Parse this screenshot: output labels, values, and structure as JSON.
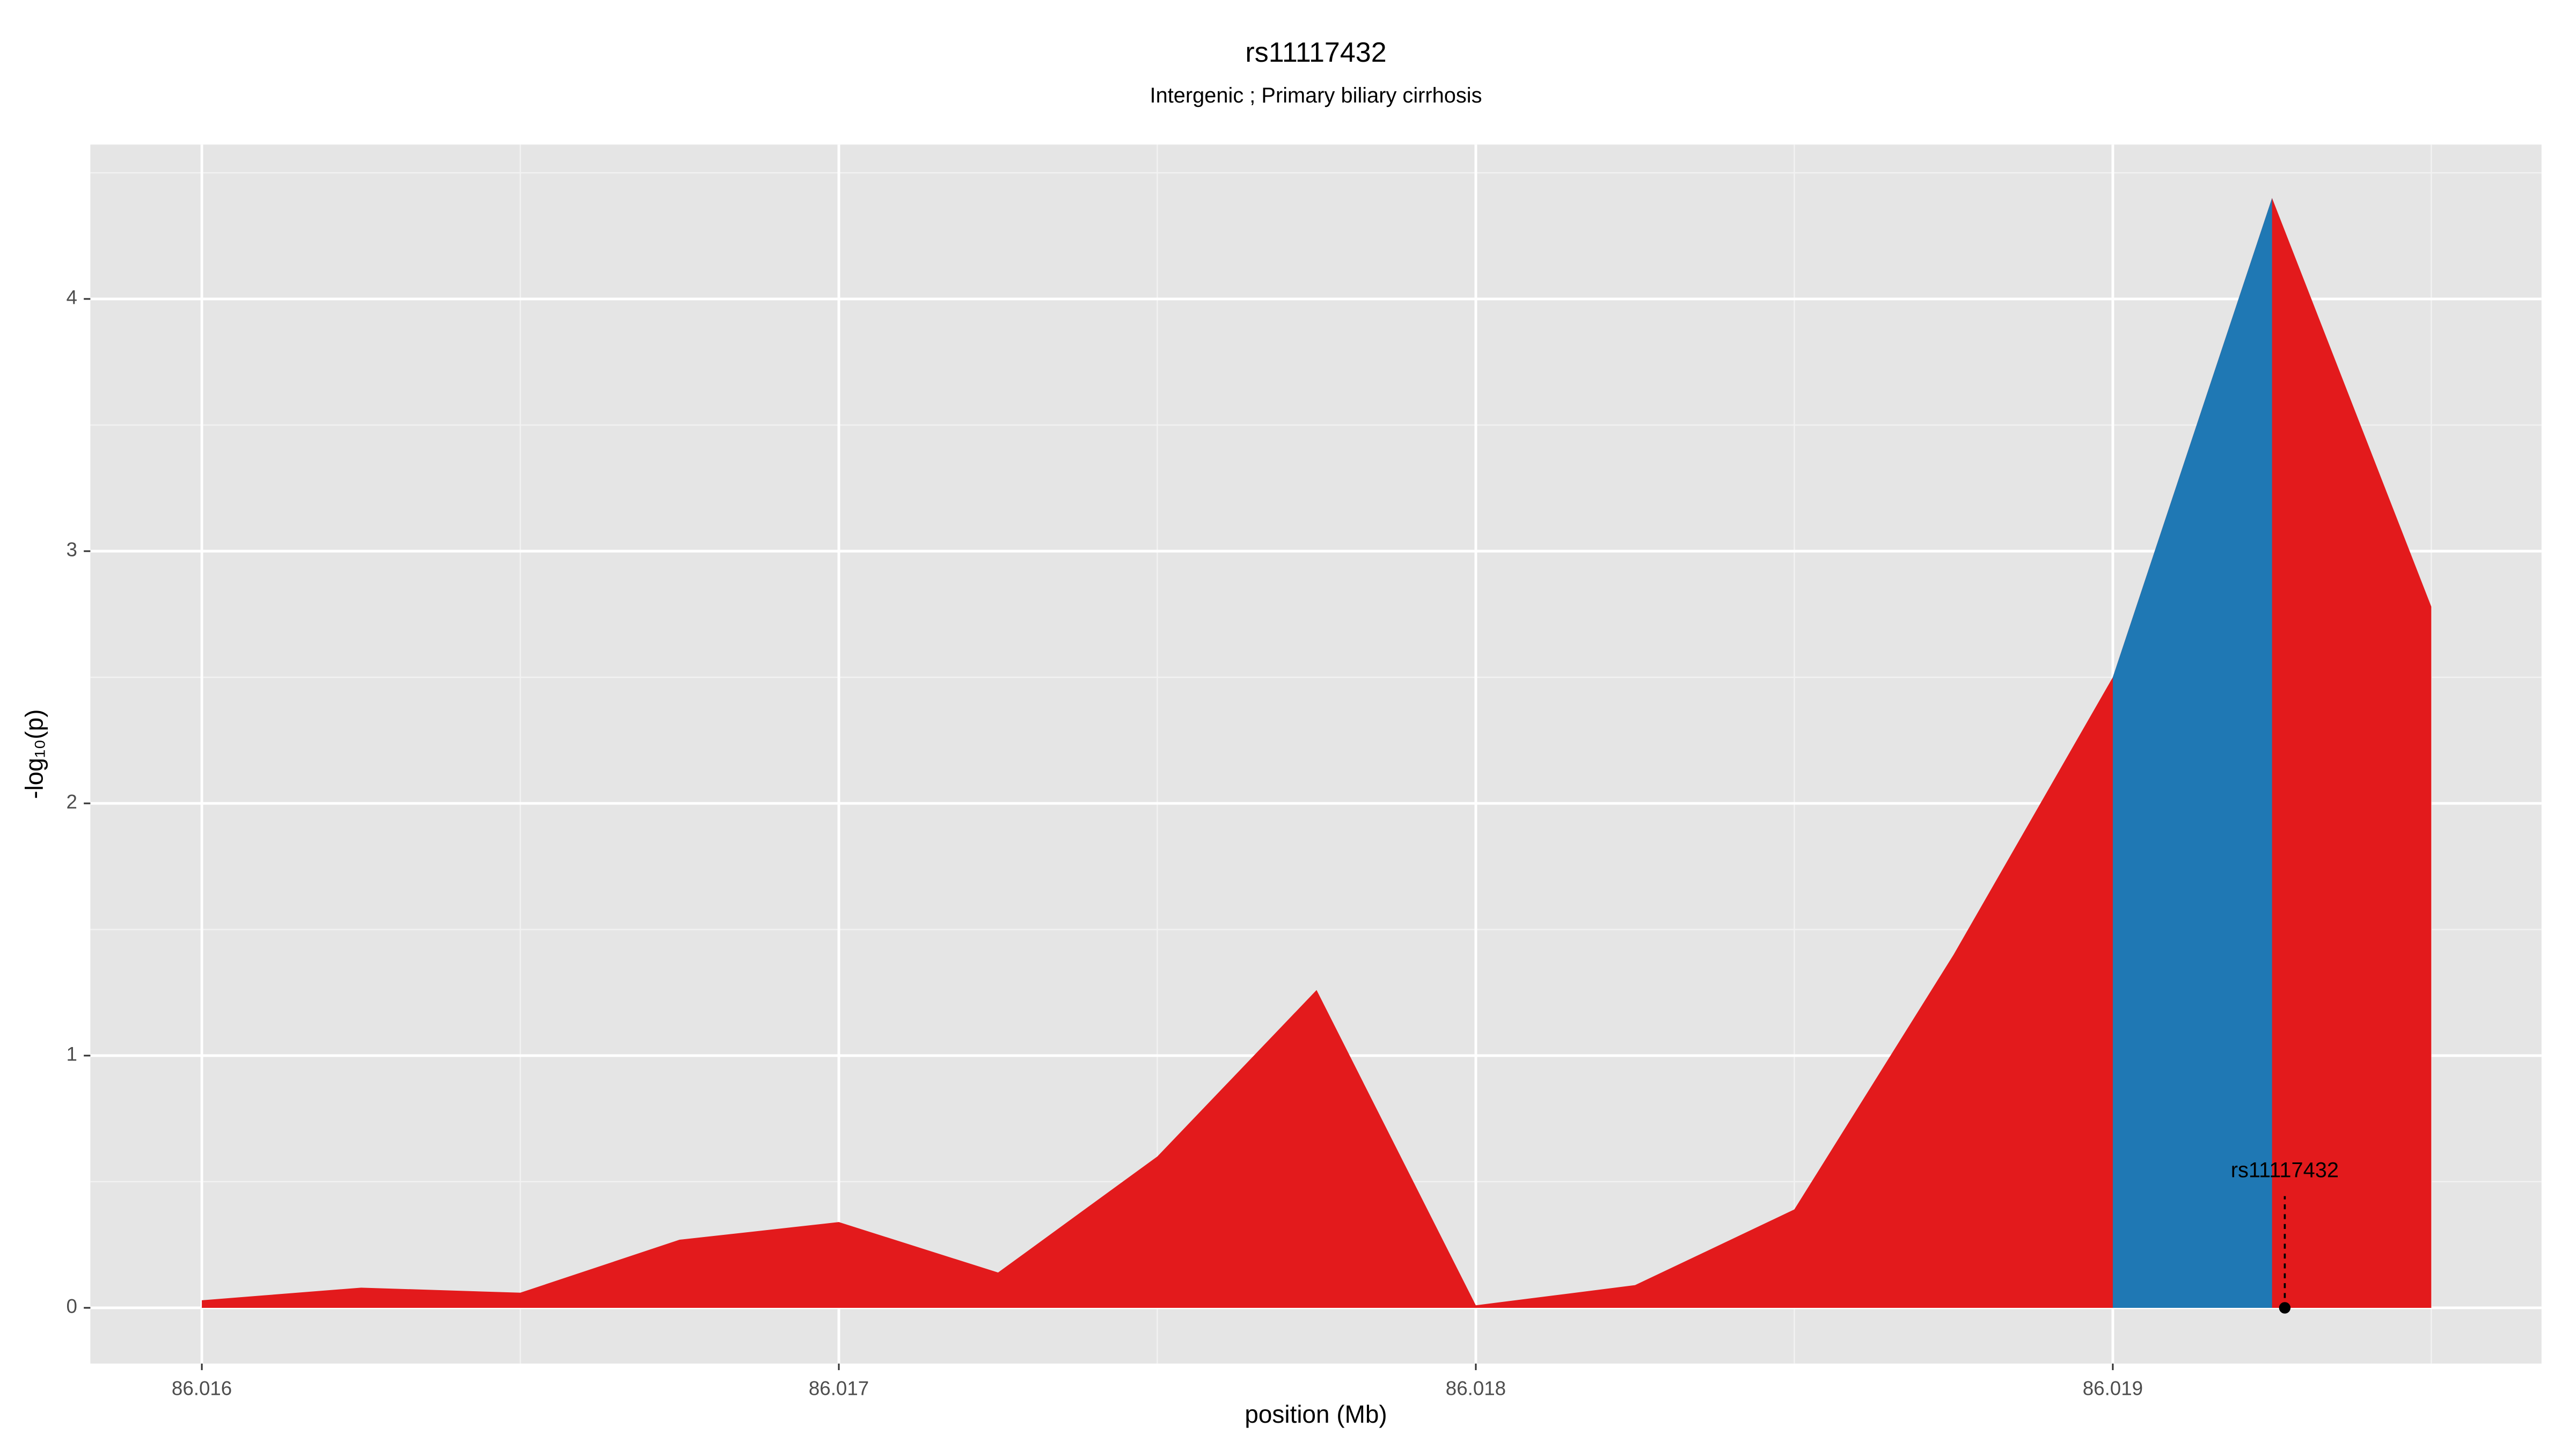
{
  "chart_data": {
    "type": "area",
    "title": "rs11117432",
    "subtitle": "Intergenic ; Primary biliary cirrhosis",
    "xlabel": "position (Mb)",
    "ylabel": "-log₁₀(p)",
    "x": [
      86.016,
      86.01625,
      86.0165,
      86.01675,
      86.017,
      86.01725,
      86.0175,
      86.01775,
      86.018,
      86.01825,
      86.0185,
      86.01875,
      86.019,
      86.01925,
      86.0195
    ],
    "values": [
      0.03,
      0.08,
      0.06,
      0.27,
      0.34,
      0.14,
      0.6,
      1.26,
      0.01,
      0.09,
      0.39,
      1.4,
      2.5,
      4.4,
      2.78
    ],
    "color": "#e31a1c",
    "highlight": {
      "x": [
        86.019,
        86.01925
      ],
      "color": "#1f78b4"
    },
    "annotation": {
      "label": "rs11117432",
      "x": 86.01927,
      "y": 0
    },
    "xlim": [
      86.015825,
      86.019673
    ],
    "ylim": [
      -0.221,
      4.612
    ],
    "xticks": [
      86.016,
      86.017,
      86.018,
      86.019
    ],
    "yticks": [
      0,
      1,
      2,
      3,
      4
    ],
    "grid": true
  }
}
